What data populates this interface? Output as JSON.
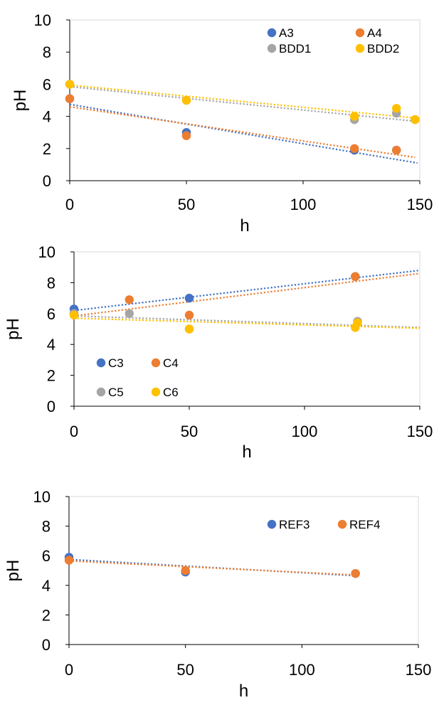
{
  "chart_data": [
    {
      "type": "scatter",
      "title": "",
      "xlabel": "h",
      "ylabel": "pH",
      "xlim": [
        0,
        150
      ],
      "ylim": [
        0,
        10
      ],
      "xticks": [
        0,
        50,
        100,
        150
      ],
      "yticks": [
        0,
        2,
        4,
        6,
        8,
        10
      ],
      "grid": false,
      "legend_position": "top-right",
      "series": [
        {
          "name": "A3",
          "color": "#4472C4",
          "x": [
            0,
            50,
            122,
            140
          ],
          "y": [
            5.1,
            3.0,
            1.9,
            1.9
          ],
          "trend": [
            [
              0,
              4.75
            ],
            [
              149,
              1.1
            ]
          ]
        },
        {
          "name": "A4",
          "color": "#ED7D31",
          "x": [
            0,
            50,
            122,
            140
          ],
          "y": [
            5.1,
            2.8,
            2.0,
            1.9
          ],
          "trend": [
            [
              0,
              4.6
            ],
            [
              148,
              1.45
            ]
          ]
        },
        {
          "name": "BDD1",
          "color": "#A5A5A5",
          "x": [
            0,
            50,
            122,
            140,
            148
          ],
          "y": [
            6.0,
            5.0,
            3.8,
            4.2,
            3.8
          ],
          "trend": [
            [
              0,
              5.85
            ],
            [
              148,
              3.7
            ]
          ]
        },
        {
          "name": "BDD2",
          "color": "#FFC000",
          "x": [
            0,
            50,
            122,
            140,
            148
          ],
          "y": [
            6.0,
            5.0,
            4.0,
            4.5,
            3.8
          ],
          "trend": [
            [
              0,
              5.95
            ],
            [
              148,
              3.9
            ]
          ]
        }
      ]
    },
    {
      "type": "scatter",
      "title": "",
      "xlabel": "h",
      "ylabel": "pH",
      "xlim": [
        0,
        150
      ],
      "ylim": [
        0,
        10
      ],
      "xticks": [
        0,
        50,
        100,
        150
      ],
      "yticks": [
        0,
        2,
        4,
        6,
        8,
        10
      ],
      "grid": false,
      "legend_position": "bottom-left",
      "series": [
        {
          "name": "C3",
          "color": "#4472C4",
          "x": [
            0,
            50,
            122
          ],
          "y": [
            6.3,
            7.0,
            8.4
          ],
          "trend": [
            [
              0,
              6.2
            ],
            [
              150,
              8.8
            ]
          ]
        },
        {
          "name": "C4",
          "color": "#ED7D31",
          "x": [
            0,
            24,
            50,
            122
          ],
          "y": [
            6.0,
            6.9,
            5.9,
            8.4
          ],
          "trend": [
            [
              0,
              5.85
            ],
            [
              150,
              8.6
            ]
          ]
        },
        {
          "name": "C5",
          "color": "#A5A5A5",
          "x": [
            0,
            24,
            50,
            123
          ],
          "y": [
            6.0,
            6.0,
            5.0,
            5.5
          ],
          "trend": [
            [
              0,
              5.85
            ],
            [
              150,
              5.1
            ]
          ]
        },
        {
          "name": "C6",
          "color": "#FFC000",
          "x": [
            0,
            50,
            122,
            123
          ],
          "y": [
            5.9,
            5.0,
            5.1,
            5.4
          ],
          "trend": [
            [
              0,
              5.7
            ],
            [
              150,
              5.05
            ]
          ]
        }
      ]
    },
    {
      "type": "scatter",
      "title": "",
      "xlabel": "h",
      "ylabel": "pH",
      "xlim": [
        0,
        150
      ],
      "ylim": [
        0,
        10
      ],
      "xticks": [
        0,
        50,
        100,
        150
      ],
      "yticks": [
        0,
        2,
        4,
        6,
        8,
        10
      ],
      "grid": false,
      "legend_position": "top-right",
      "series": [
        {
          "name": "REF3",
          "color": "#4472C4",
          "x": [
            0,
            50,
            123
          ],
          "y": [
            5.9,
            4.9,
            4.8
          ],
          "trend": [
            [
              0,
              5.75
            ],
            [
              123,
              4.65
            ]
          ]
        },
        {
          "name": "REF4",
          "color": "#ED7D31",
          "x": [
            0,
            50,
            123
          ],
          "y": [
            5.7,
            5.0,
            4.8
          ],
          "trend": [
            [
              0,
              5.65
            ],
            [
              123,
              4.7
            ]
          ]
        }
      ]
    }
  ]
}
